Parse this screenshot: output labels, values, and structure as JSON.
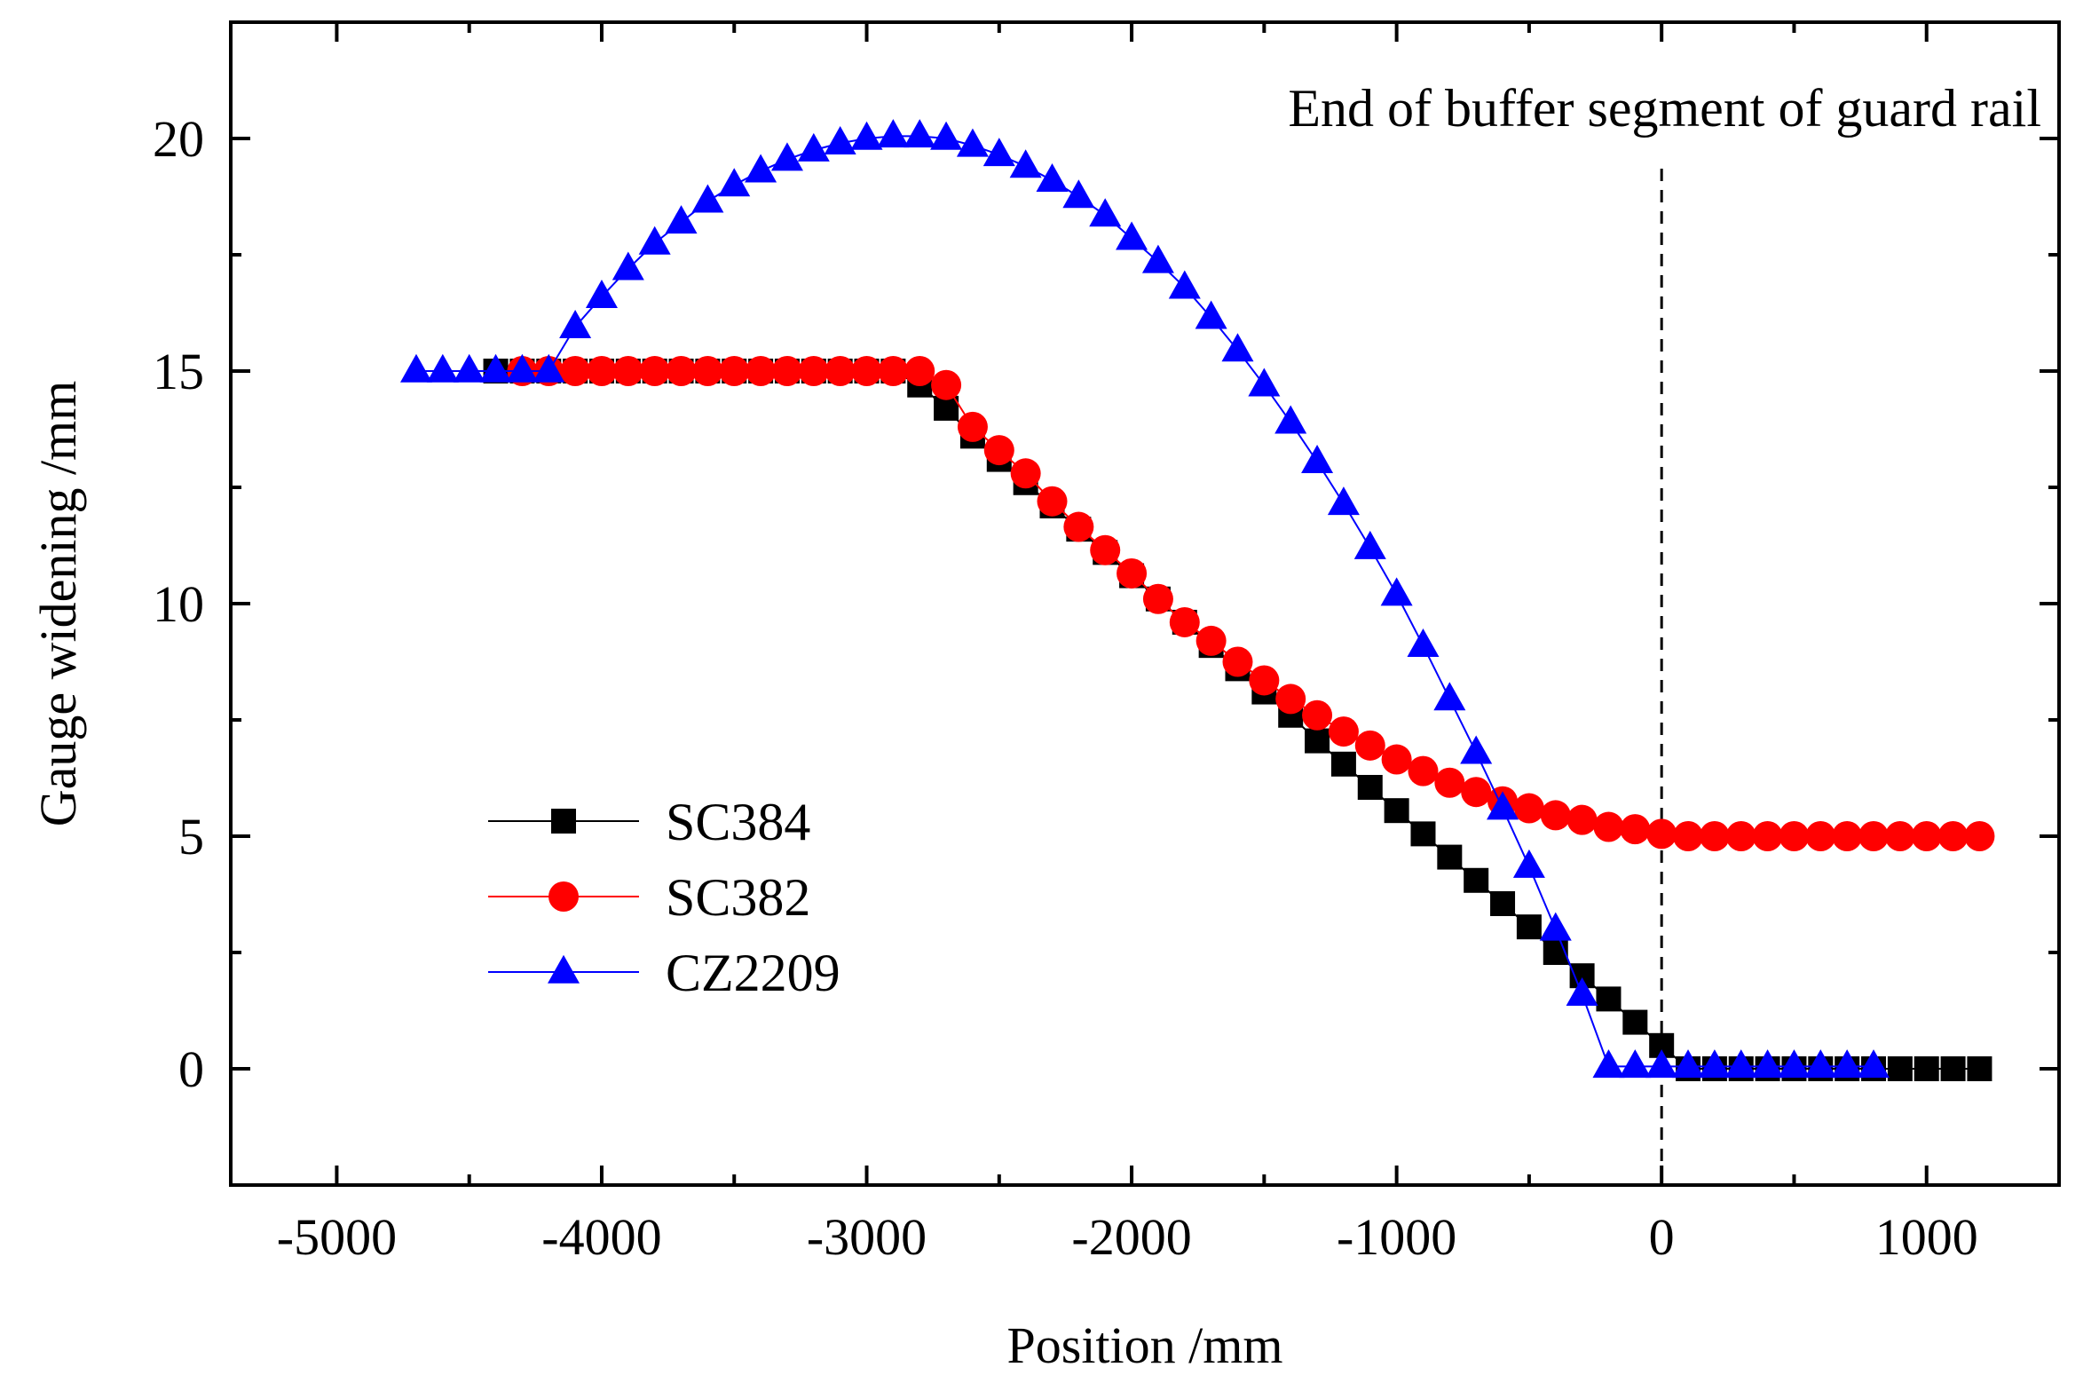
{
  "chart_data": {
    "type": "line",
    "title": "",
    "xlabel": "Position /mm",
    "ylabel": "Gauge widening /mm",
    "xlim": [
      -5400,
      1500
    ],
    "ylim": [
      -2.5,
      22.5
    ],
    "xticks": [
      -5000,
      -4000,
      -3000,
      -2000,
      -1000,
      0,
      1000
    ],
    "xtick_labels": [
      "-5000",
      "-4000",
      "-3000",
      "-2000",
      "-1000",
      "0",
      "1000"
    ],
    "yticks": [
      0,
      5,
      10,
      15,
      20
    ],
    "ytick_labels": [
      "0",
      "5",
      "10",
      "15",
      "20"
    ],
    "legend_position": "lower-left",
    "annotation": {
      "text": "End of buffer segment of guard rail",
      "x": 0,
      "line_style": "dashed"
    },
    "series": [
      {
        "name": "SC384",
        "color": "#000000",
        "marker": "square",
        "x": [
          -4400,
          -4300,
          -4200,
          -4100,
          -4000,
          -3900,
          -3800,
          -3700,
          -3600,
          -3500,
          -3400,
          -3300,
          -3200,
          -3100,
          -3000,
          -2900,
          -2800,
          -2700,
          -2600,
          -2500,
          -2400,
          -2300,
          -2200,
          -2100,
          -2000,
          -1900,
          -1800,
          -1700,
          -1600,
          -1500,
          -1400,
          -1300,
          -1200,
          -1100,
          -1000,
          -900,
          -800,
          -700,
          -600,
          -500,
          -400,
          -300,
          -200,
          -100,
          0,
          100,
          200,
          300,
          400,
          500,
          600,
          700,
          800,
          900,
          1000,
          1100,
          1200
        ],
        "y": [
          15,
          15,
          15,
          15,
          15,
          15,
          15,
          15,
          15,
          15,
          15,
          15,
          15,
          15,
          15,
          15,
          14.7,
          14.2,
          13.6,
          13.1,
          12.6,
          12.1,
          11.6,
          11.1,
          10.6,
          10.1,
          9.6,
          9.1,
          8.6,
          8.1,
          7.6,
          7.05,
          6.55,
          6.05,
          5.55,
          5.05,
          4.55,
          4.05,
          3.55,
          3.05,
          2.5,
          2.0,
          1.5,
          1.0,
          0.5,
          0,
          0,
          0,
          0,
          0,
          0,
          0,
          0,
          0,
          0,
          0,
          0
        ]
      },
      {
        "name": "SC382",
        "color": "#ff0000",
        "marker": "circle",
        "x": [
          -4300,
          -4200,
          -4100,
          -4000,
          -3900,
          -3800,
          -3700,
          -3600,
          -3500,
          -3400,
          -3300,
          -3200,
          -3100,
          -3000,
          -2900,
          -2800,
          -2700,
          -2600,
          -2500,
          -2400,
          -2300,
          -2200,
          -2100,
          -2000,
          -1900,
          -1800,
          -1700,
          -1600,
          -1500,
          -1400,
          -1300,
          -1200,
          -1100,
          -1000,
          -900,
          -800,
          -700,
          -600,
          -500,
          -400,
          -300,
          -200,
          -100,
          0,
          100,
          200,
          300,
          400,
          500,
          600,
          700,
          800,
          900,
          1000,
          1100,
          1200
        ],
        "y": [
          15,
          15,
          15,
          15,
          15,
          15,
          15,
          15,
          15,
          15,
          15,
          15,
          15,
          15,
          15,
          15,
          14.7,
          13.8,
          13.3,
          12.8,
          12.2,
          11.65,
          11.15,
          10.65,
          10.1,
          9.6,
          9.2,
          8.75,
          8.35,
          7.95,
          7.6,
          7.25,
          6.95,
          6.65,
          6.4,
          6.15,
          5.95,
          5.75,
          5.6,
          5.45,
          5.35,
          5.2,
          5.15,
          5.05,
          5,
          5,
          5,
          5,
          5,
          5,
          5,
          5,
          5,
          5,
          5,
          5
        ]
      },
      {
        "name": "CZ2209",
        "color": "#0000ff",
        "marker": "triangle",
        "x": [
          -4700,
          -4600,
          -4500,
          -4400,
          -4300,
          -4200,
          -4100,
          -4000,
          -3900,
          -3800,
          -3700,
          -3600,
          -3500,
          -3400,
          -3300,
          -3200,
          -3100,
          -3000,
          -2900,
          -2800,
          -2700,
          -2600,
          -2500,
          -2400,
          -2300,
          -2200,
          -2100,
          -2000,
          -1900,
          -1800,
          -1700,
          -1600,
          -1500,
          -1400,
          -1300,
          -1200,
          -1100,
          -1000,
          -900,
          -800,
          -700,
          -600,
          -500,
          -400,
          -300,
          -200,
          -100,
          0,
          100,
          200,
          300,
          400,
          500,
          600,
          700,
          800
        ],
        "y": [
          15,
          15,
          15,
          15,
          15,
          15,
          15.95,
          16.6,
          17.2,
          17.75,
          18.2,
          18.65,
          19.0,
          19.3,
          19.55,
          19.75,
          19.9,
          20.0,
          20.05,
          20.05,
          20.0,
          19.85,
          19.65,
          19.4,
          19.1,
          18.75,
          18.35,
          17.85,
          17.35,
          16.8,
          16.15,
          15.45,
          14.7,
          13.9,
          13.05,
          12.15,
          11.2,
          10.2,
          9.1,
          7.95,
          6.8,
          5.6,
          4.35,
          3.0,
          1.6,
          0.05,
          0.05,
          0.05,
          0.05,
          0.05,
          0.05,
          0.05,
          0.05,
          0.05,
          0.05,
          0.05
        ]
      }
    ]
  }
}
